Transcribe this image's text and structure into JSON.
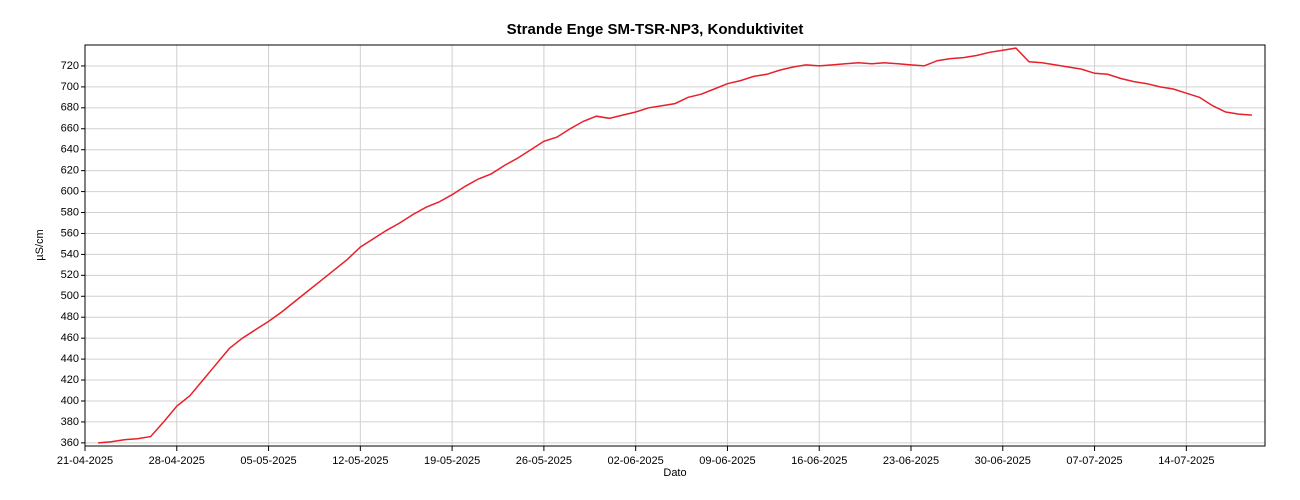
{
  "chart_data": {
    "type": "line",
    "title": "Strande Enge SM-TSR-NP3, Konduktivitet",
    "xlabel": "Dato",
    "ylabel": "µS/cm",
    "x": [
      "2025-04-22",
      "2025-04-23",
      "2025-04-24",
      "2025-04-25",
      "2025-04-26",
      "2025-04-27",
      "2025-04-28",
      "2025-04-29",
      "2025-04-30",
      "2025-05-01",
      "2025-05-02",
      "2025-05-03",
      "2025-05-04",
      "2025-05-05",
      "2025-05-06",
      "2025-05-07",
      "2025-05-08",
      "2025-05-09",
      "2025-05-10",
      "2025-05-11",
      "2025-05-12",
      "2025-05-13",
      "2025-05-14",
      "2025-05-15",
      "2025-05-16",
      "2025-05-17",
      "2025-05-18",
      "2025-05-19",
      "2025-05-20",
      "2025-05-21",
      "2025-05-22",
      "2025-05-23",
      "2025-05-24",
      "2025-05-25",
      "2025-05-26",
      "2025-05-27",
      "2025-05-28",
      "2025-05-29",
      "2025-05-30",
      "2025-05-31",
      "2025-06-01",
      "2025-06-02",
      "2025-06-03",
      "2025-06-04",
      "2025-06-05",
      "2025-06-06",
      "2025-06-07",
      "2025-06-08",
      "2025-06-09",
      "2025-06-10",
      "2025-06-11",
      "2025-06-12",
      "2025-06-13",
      "2025-06-14",
      "2025-06-15",
      "2025-06-16",
      "2025-06-17",
      "2025-06-18",
      "2025-06-19",
      "2025-06-20",
      "2025-06-21",
      "2025-06-22",
      "2025-06-23",
      "2025-06-24",
      "2025-06-25",
      "2025-06-26",
      "2025-06-27",
      "2025-06-28",
      "2025-06-29",
      "2025-06-30",
      "2025-07-01",
      "2025-07-02",
      "2025-07-03",
      "2025-07-04",
      "2025-07-05",
      "2025-07-06",
      "2025-07-07",
      "2025-07-08",
      "2025-07-09",
      "2025-07-10",
      "2025-07-11",
      "2025-07-12",
      "2025-07-13",
      "2025-07-14",
      "2025-07-15",
      "2025-07-16",
      "2025-07-17",
      "2025-07-18",
      "2025-07-19"
    ],
    "series": [
      {
        "name": "Konduktivitet",
        "color": "#e8202a",
        "values": [
          360,
          361,
          363,
          364,
          366,
          380,
          395,
          405,
          420,
          435,
          450,
          460,
          468,
          476,
          485,
          495,
          505,
          515,
          525,
          535,
          547,
          555,
          563,
          570,
          578,
          585,
          590,
          597,
          605,
          612,
          617,
          625,
          632,
          640,
          648,
          652,
          660,
          667,
          672,
          670,
          673,
          676,
          680,
          682,
          684,
          690,
          693,
          698,
          703,
          706,
          710,
          712,
          716,
          719,
          721,
          720,
          721,
          722,
          723,
          722,
          723,
          722,
          721,
          720,
          725,
          727,
          728,
          730,
          733,
          735,
          737,
          724,
          723,
          721,
          719,
          717,
          713,
          712,
          708,
          705,
          703,
          700,
          698,
          694,
          690,
          682,
          676,
          674,
          673
        ]
      }
    ],
    "xlim": [
      "2025-04-21",
      "2025-07-20"
    ],
    "xticks": [
      {
        "value": "2025-04-21",
        "label": "21-04-2025"
      },
      {
        "value": "2025-04-28",
        "label": "28-04-2025"
      },
      {
        "value": "2025-05-05",
        "label": "05-05-2025"
      },
      {
        "value": "2025-05-12",
        "label": "12-05-2025"
      },
      {
        "value": "2025-05-19",
        "label": "19-05-2025"
      },
      {
        "value": "2025-05-26",
        "label": "26-05-2025"
      },
      {
        "value": "2025-06-02",
        "label": "02-06-2025"
      },
      {
        "value": "2025-06-09",
        "label": "09-06-2025"
      },
      {
        "value": "2025-06-16",
        "label": "16-06-2025"
      },
      {
        "value": "2025-06-23",
        "label": "23-06-2025"
      },
      {
        "value": "2025-06-30",
        "label": "30-06-2025"
      },
      {
        "value": "2025-07-07",
        "label": "07-07-2025"
      },
      {
        "value": "2025-07-14",
        "label": "14-07-2025"
      }
    ],
    "ylim": [
      357,
      740
    ],
    "yticks": [
      360,
      380,
      400,
      420,
      440,
      460,
      480,
      500,
      520,
      540,
      560,
      580,
      600,
      620,
      640,
      660,
      680,
      700,
      720
    ],
    "grid": true
  }
}
